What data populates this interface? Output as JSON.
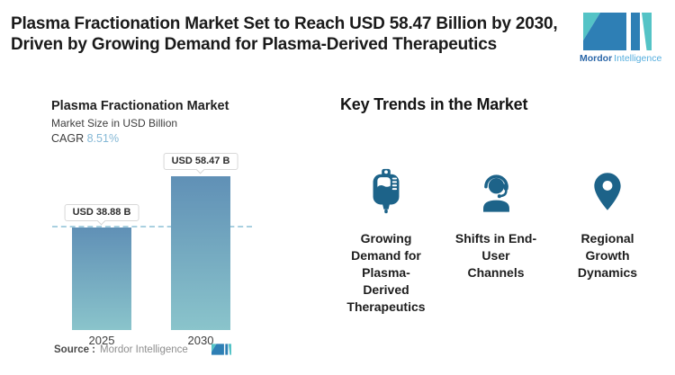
{
  "header": {
    "title": "Plasma Fractionation Market Set to Reach USD 58.47 Billion by 2030,\nDriven by Growing Demand for Plasma-Derived Therapeutics"
  },
  "logo": {
    "brand_bold": "Mordor",
    "brand_light": "Intelligence",
    "dark_color": "#2e7fb5",
    "teal_color": "#54c3c6"
  },
  "chart": {
    "title": "Plasma Fractionation Market",
    "subtitle": "Market Size in USD Billion",
    "cagr_label": "CAGR",
    "cagr_value": "8.51%",
    "cagr_value_color": "#85b8d6",
    "source_label": "Source :",
    "source_value": "Mordor Intelligence"
  },
  "chart_data": {
    "type": "bar",
    "categories": [
      "2025",
      "2030"
    ],
    "values": [
      38.88,
      58.47
    ],
    "value_labels": [
      "USD 38.88 B",
      "USD 58.47 B"
    ],
    "title": "Plasma Fractionation Market",
    "ylabel": "Market Size in USD Billion",
    "cagr_percent": 8.51,
    "ylim": [
      0,
      60
    ],
    "bar_gradient_top": "#6090b6",
    "bar_gradient_bottom": "#8ac4cb",
    "dashed_reference_line_at": 38.88,
    "dashed_line_color": "#a9d0e0",
    "legend": "none",
    "grid": false
  },
  "trends": {
    "heading": "Key Trends in the Market",
    "icon_color": "#1d6389",
    "items": [
      {
        "icon": "iv-bag-icon",
        "label": "Growing\nDemand for\nPlasma-\nDerived\nTherapeutics"
      },
      {
        "icon": "headset-agent-icon",
        "label": "Shifts in End-\nUser\nChannels"
      },
      {
        "icon": "map-pin-icon",
        "label": "Regional\nGrowth\nDynamics"
      }
    ]
  }
}
